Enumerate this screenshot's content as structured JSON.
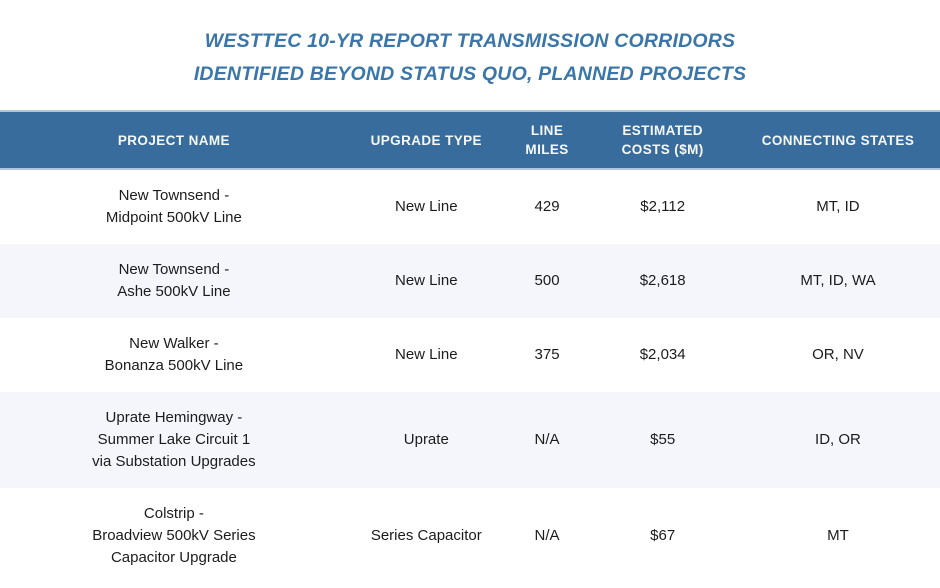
{
  "title": {
    "line1": "WESTTEC 10-YR REPORT TRANSMISSION CORRIDORS",
    "line2": "IDENTIFIED BEYOND STATUS QUO, PLANNED PROJECTS"
  },
  "colors": {
    "header_bg": "#376c9c",
    "header_border": "#b2c5dc",
    "header_text": "#f6f8fa",
    "title_text": "#3a76a9",
    "alt_row_bg": "#f4f6fb",
    "body_text": "#1c1c1c"
  },
  "table": {
    "headers": [
      "PROJECT NAME",
      "UPGRADE TYPE",
      [
        "LINE",
        "MILES"
      ],
      [
        "ESTIMATED",
        "COSTS ($M)"
      ],
      "CONNECTING STATES"
    ],
    "rows": [
      {
        "project": [
          "New Townsend -",
          "Midpoint 500kV Line"
        ],
        "upgrade_type": "New Line",
        "line_miles": "429",
        "estimated_costs": "$2,112",
        "connecting_states": "MT, ID"
      },
      {
        "project": [
          "New Townsend -",
          "Ashe 500kV Line"
        ],
        "upgrade_type": "New Line",
        "line_miles": "500",
        "estimated_costs": "$2,618",
        "connecting_states": "MT, ID, WA"
      },
      {
        "project": [
          "New Walker -",
          "Bonanza 500kV Line"
        ],
        "upgrade_type": "New Line",
        "line_miles": "375",
        "estimated_costs": "$2,034",
        "connecting_states": "OR, NV"
      },
      {
        "project": [
          "Uprate Hemingway -",
          "Summer Lake Circuit 1",
          "via Substation Upgrades"
        ],
        "upgrade_type": "Uprate",
        "line_miles": "N/A",
        "estimated_costs": "$55",
        "connecting_states": "ID, OR"
      },
      {
        "project": [
          "Colstrip -",
          "Broadview 500kV Series",
          "Capacitor Upgrade"
        ],
        "upgrade_type": "Series Capacitor",
        "line_miles": "N/A",
        "estimated_costs": "$67",
        "connecting_states": "MT"
      }
    ]
  },
  "chart_data": {
    "type": "table",
    "title": "WESTTEC 10-YR REPORT TRANSMISSION CORRIDORS IDENTIFIED BEYOND STATUS QUO, PLANNED PROJECTS",
    "columns": [
      "PROJECT NAME",
      "UPGRADE TYPE",
      "LINE MILES",
      "ESTIMATED COSTS ($M)",
      "CONNECTING STATES"
    ],
    "rows": [
      [
        "New Townsend - Midpoint 500kV Line",
        "New Line",
        "429",
        "$2,112",
        "MT, ID"
      ],
      [
        "New Townsend - Ashe 500kV Line",
        "New Line",
        "500",
        "$2,618",
        "MT, ID, WA"
      ],
      [
        "New Walker - Bonanza 500kV Line",
        "New Line",
        "375",
        "$2,034",
        "OR, NV"
      ],
      [
        "Uprate Hemingway - Summer Lake Circuit 1 via Substation Upgrades",
        "Uprate",
        "N/A",
        "$55",
        "ID, OR"
      ],
      [
        "Colstrip - Broadview 500kV Series Capacitor Upgrade",
        "Series Capacitor",
        "N/A",
        "$67",
        "MT"
      ]
    ]
  }
}
